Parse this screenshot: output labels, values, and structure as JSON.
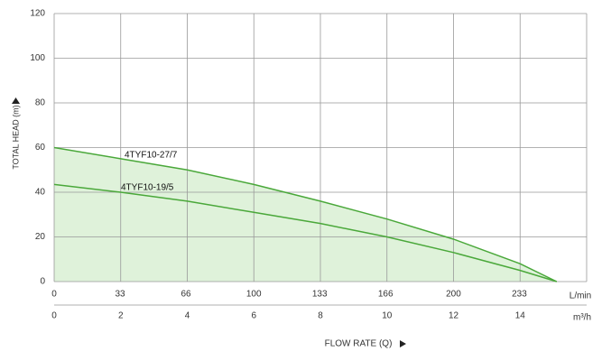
{
  "chart_data": {
    "type": "line",
    "x_label": "FLOW RATE (Q)",
    "y_label": "TOTAL HEAD (m)",
    "x_unit": "m³/h",
    "x2_unit": "L/min",
    "x": [
      0,
      2,
      4,
      6,
      8,
      10,
      12,
      14,
      15.1
    ],
    "series": [
      {
        "name": "4TYF10-27/7",
        "color": "#4aa83a",
        "values": [
          60,
          55,
          50,
          43.5,
          36,
          28,
          19,
          8,
          0
        ]
      },
      {
        "name": "4TYF10-19/5",
        "color": "#4aa83a",
        "values": [
          43.5,
          40,
          36,
          31,
          26,
          20,
          13,
          5,
          0
        ]
      }
    ],
    "fill_color": "#dff2da",
    "xlim": [
      0,
      16
    ],
    "xticks": [
      0,
      2,
      4,
      6,
      8,
      10,
      12,
      14
    ],
    "x2lim": [
      0,
      266.7
    ],
    "x2ticks": [
      0,
      33,
      66,
      100,
      133,
      166,
      200,
      233
    ],
    "ylim": [
      0,
      120
    ],
    "yticks": [
      0,
      20,
      40,
      60,
      80,
      100,
      120
    ],
    "grid": true
  }
}
